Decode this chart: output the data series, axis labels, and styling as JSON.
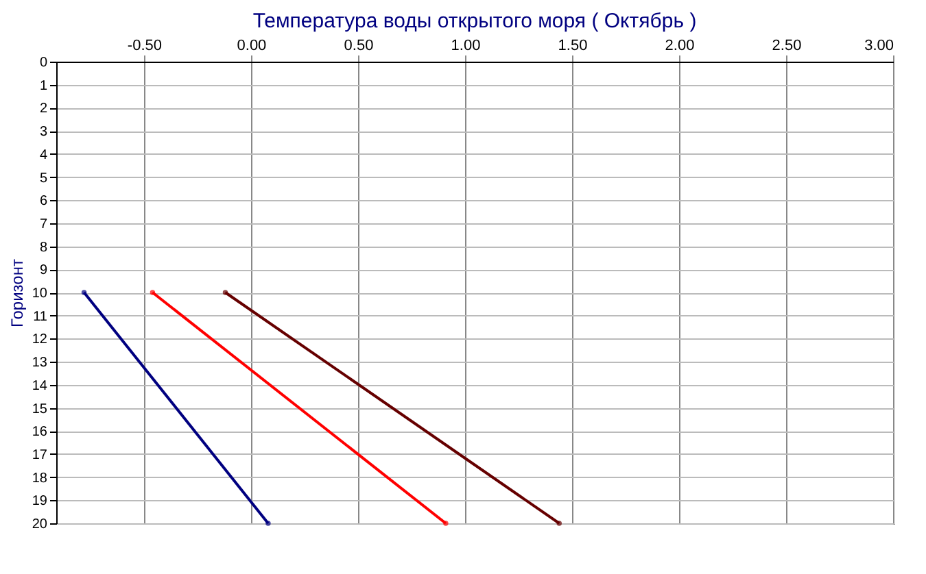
{
  "chart_data": {
    "type": "line",
    "title": "Температура воды открытого моря    ( Октябрь )",
    "ylabel": "Горизонт",
    "xlim": [
      -0.91,
      3.0
    ],
    "xticks": [
      {
        "value": -0.5,
        "label": "-0.50"
      },
      {
        "value": 0,
        "label": "0.00"
      },
      {
        "value": 0.5,
        "label": "0.50"
      },
      {
        "value": 1,
        "label": "1.00"
      },
      {
        "value": 1.5,
        "label": "1.50"
      },
      {
        "value": 2,
        "label": "2.00"
      },
      {
        "value": 2.5,
        "label": "2.50"
      },
      {
        "value": 3,
        "label": "3.00"
      }
    ],
    "ylim": [
      20,
      0
    ],
    "yticks": [
      0,
      1,
      2,
      3,
      4,
      5,
      6,
      7,
      8,
      9,
      10,
      11,
      12,
      13,
      14,
      15,
      16,
      17,
      18,
      19,
      20
    ],
    "grid": true,
    "marker": "circle",
    "series": [
      {
        "color": "#000080",
        "x": [
          -0.78,
          0.08
        ],
        "values": [
          10,
          20
        ]
      },
      {
        "color": "#ff0000",
        "x": [
          -0.46,
          0.91
        ],
        "values": [
          10,
          20
        ]
      },
      {
        "color": "#660000",
        "x": [
          -0.12,
          1.44
        ],
        "values": [
          10,
          20
        ]
      }
    ]
  }
}
